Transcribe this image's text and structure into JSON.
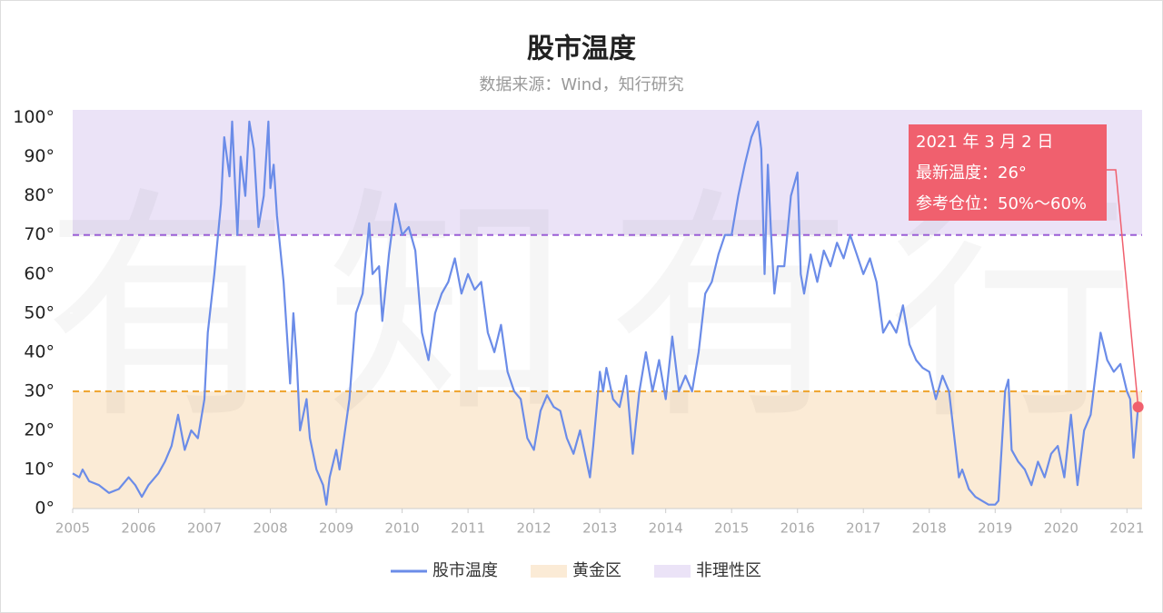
{
  "chart_data": {
    "type": "line",
    "title": "股市温度",
    "subtitle": "数据来源：Wind，知行研究",
    "watermark": "有知有行",
    "xlim": [
      2005,
      2021.23
    ],
    "xticks": [
      2005,
      2006,
      2007,
      2008,
      2009,
      2010,
      2011,
      2012,
      2013,
      2014,
      2015,
      2016,
      2017,
      2018,
      2019,
      2020,
      2021
    ],
    "ylim": [
      0,
      102
    ],
    "yticks": [
      {
        "value": 0,
        "label": "0°"
      },
      {
        "value": 10,
        "label": "10°"
      },
      {
        "value": 20,
        "label": "20°"
      },
      {
        "value": 30,
        "label": "30°"
      },
      {
        "value": 40,
        "label": "40°"
      },
      {
        "value": 50,
        "label": "50°"
      },
      {
        "value": 60,
        "label": "60°"
      },
      {
        "value": 70,
        "label": "70°"
      },
      {
        "value": 80,
        "label": "80°"
      },
      {
        "value": 90,
        "label": "90°"
      },
      {
        "value": 100,
        "label": "100°"
      }
    ],
    "zones": [
      {
        "name": "黄金区",
        "range": [
          0,
          30
        ],
        "color": "#fbebd6",
        "line_color": "#eea22a"
      },
      {
        "name": "非理性区",
        "range": [
          70,
          102
        ],
        "color": "#ebe3f7",
        "line_color": "#9b5fd6"
      }
    ],
    "series": [
      {
        "name": "股市温度",
        "color": "#6b8ce8",
        "x": [
          2005.0,
          2005.1,
          2005.15,
          2005.25,
          2005.4,
          2005.55,
          2005.7,
          2005.85,
          2005.95,
          2006.05,
          2006.15,
          2006.3,
          2006.4,
          2006.5,
          2006.6,
          2006.7,
          2006.8,
          2006.9,
          2007.0,
          2007.05,
          2007.15,
          2007.25,
          2007.3,
          2007.38,
          2007.42,
          2007.5,
          2007.55,
          2007.62,
          2007.68,
          2007.75,
          2007.82,
          2007.9,
          2007.97,
          2008.0,
          2008.05,
          2008.1,
          2008.2,
          2008.25,
          2008.3,
          2008.35,
          2008.4,
          2008.45,
          2008.55,
          2008.6,
          2008.7,
          2008.8,
          2008.85,
          2008.9,
          2009.0,
          2009.05,
          2009.15,
          2009.2,
          2009.3,
          2009.4,
          2009.5,
          2009.55,
          2009.65,
          2009.7,
          2009.8,
          2009.9,
          2010.0,
          2010.1,
          2010.2,
          2010.3,
          2010.4,
          2010.5,
          2010.6,
          2010.7,
          2010.8,
          2010.9,
          2011.0,
          2011.1,
          2011.2,
          2011.3,
          2011.4,
          2011.5,
          2011.6,
          2011.7,
          2011.8,
          2011.9,
          2012.0,
          2012.1,
          2012.2,
          2012.3,
          2012.4,
          2012.5,
          2012.6,
          2012.7,
          2012.85,
          2012.9,
          2013.0,
          2013.05,
          2013.1,
          2013.2,
          2013.3,
          2013.4,
          2013.5,
          2013.6,
          2013.7,
          2013.8,
          2013.9,
          2014.0,
          2014.1,
          2014.2,
          2014.3,
          2014.4,
          2014.5,
          2014.6,
          2014.7,
          2014.8,
          2014.9,
          2015.0,
          2015.1,
          2015.2,
          2015.3,
          2015.4,
          2015.45,
          2015.5,
          2015.55,
          2015.6,
          2015.65,
          2015.7,
          2015.8,
          2015.9,
          2016.0,
          2016.05,
          2016.1,
          2016.2,
          2016.3,
          2016.4,
          2016.5,
          2016.6,
          2016.7,
          2016.8,
          2016.9,
          2017.0,
          2017.1,
          2017.2,
          2017.3,
          2017.4,
          2017.5,
          2017.6,
          2017.7,
          2017.8,
          2017.9,
          2018.0,
          2018.1,
          2018.2,
          2018.3,
          2018.45,
          2018.5,
          2018.6,
          2018.7,
          2018.8,
          2018.9,
          2019.0,
          2019.05,
          2019.15,
          2019.2,
          2019.25,
          2019.35,
          2019.45,
          2019.55,
          2019.65,
          2019.75,
          2019.85,
          2019.95,
          2020.05,
          2020.15,
          2020.25,
          2020.35,
          2020.45,
          2020.55,
          2020.6,
          2020.7,
          2020.8,
          2020.9,
          2021.0,
          2021.05,
          2021.1,
          2021.17
        ],
        "values": [
          9,
          8,
          10,
          7,
          6,
          4,
          5,
          8,
          6,
          3,
          6,
          9,
          12,
          16,
          24,
          15,
          20,
          18,
          28,
          45,
          60,
          78,
          95,
          85,
          99,
          70,
          90,
          80,
          99,
          92,
          72,
          80,
          99,
          82,
          88,
          75,
          58,
          45,
          32,
          50,
          38,
          20,
          28,
          18,
          10,
          6,
          1,
          8,
          15,
          10,
          22,
          28,
          50,
          55,
          73,
          60,
          62,
          48,
          65,
          78,
          70,
          72,
          66,
          45,
          38,
          50,
          55,
          58,
          64,
          55,
          60,
          56,
          58,
          45,
          40,
          47,
          35,
          30,
          28,
          18,
          15,
          25,
          29,
          26,
          25,
          18,
          14,
          20,
          8,
          16,
          35,
          30,
          36,
          28,
          26,
          34,
          14,
          30,
          40,
          30,
          38,
          28,
          44,
          30,
          34,
          30,
          40,
          55,
          58,
          65,
          70,
          70,
          80,
          88,
          95,
          99,
          92,
          60,
          88,
          70,
          55,
          62,
          62,
          80,
          86,
          60,
          55,
          65,
          58,
          66,
          62,
          68,
          64,
          70,
          65,
          60,
          64,
          58,
          45,
          48,
          45,
          52,
          42,
          38,
          36,
          35,
          28,
          34,
          30,
          8,
          10,
          5,
          3,
          2,
          1,
          1,
          2,
          30,
          33,
          15,
          12,
          10,
          6,
          12,
          8,
          14,
          16,
          8,
          24,
          6,
          20,
          24,
          38,
          45,
          38,
          35,
          37,
          30,
          28,
          13,
          26
        ]
      }
    ],
    "annotation": {
      "lines": [
        "2021 年 3 月 2 日",
        "最新温度：26°",
        "参考仓位：50%～60%"
      ],
      "color": "#f0606e"
    }
  }
}
